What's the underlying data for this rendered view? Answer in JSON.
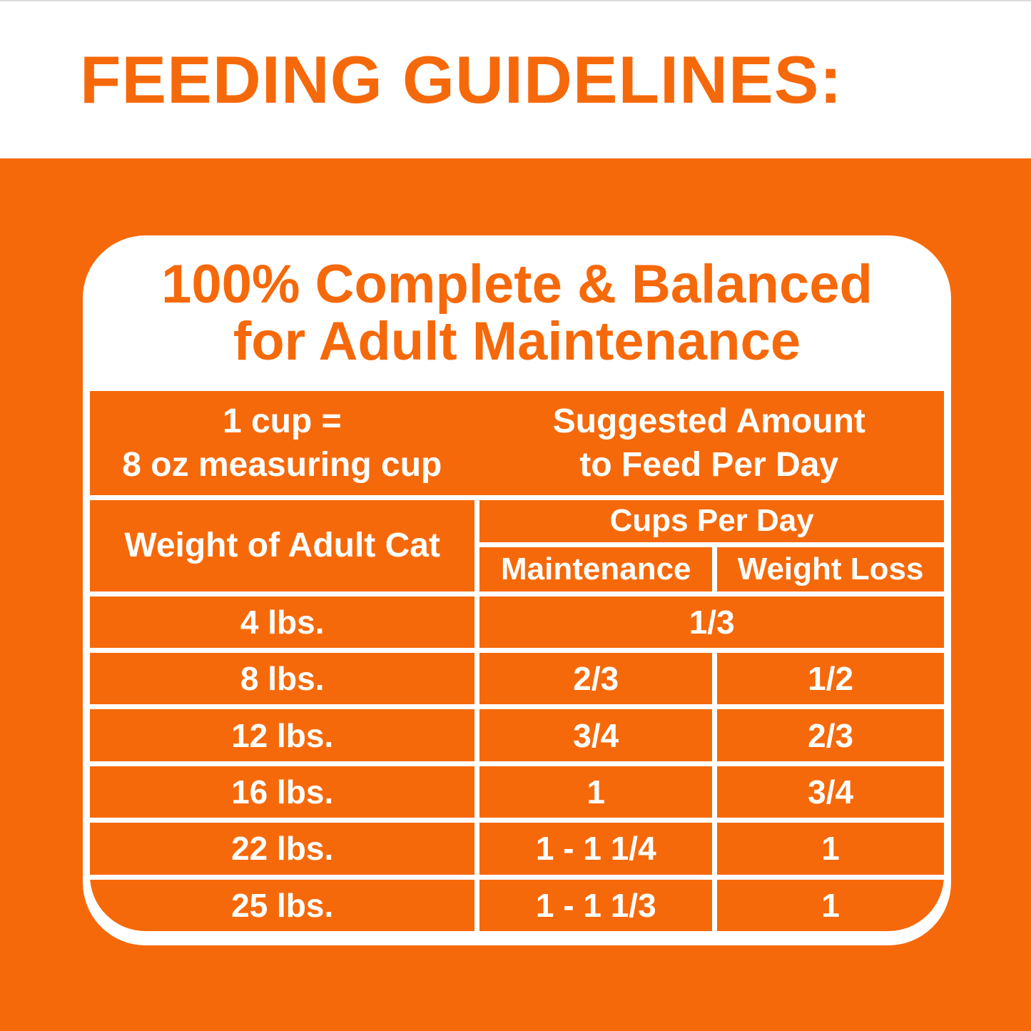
{
  "page_title": "FEEDING GUIDELINES:",
  "colors": {
    "orange": "#F6690A",
    "background_white": "#FFFFFF"
  },
  "card": {
    "heading_line1": "100% Complete & Balanced",
    "heading_line2": "for Adult Maintenance",
    "table": {
      "cup_note": {
        "line1": "1 cup =",
        "line2": "8 oz measuring cup"
      },
      "suggested": {
        "line1": "Suggested Amount",
        "line2": "to Feed Per Day"
      },
      "weight_header": "Weight of Adult Cat",
      "cups_per_day_header": "Cups Per Day",
      "maintenance_header": "Maintenance",
      "weight_loss_header": "Weight Loss",
      "rows": [
        {
          "weight": "4 lbs.",
          "maintenance": "1/3",
          "weight_loss": null
        },
        {
          "weight": "8 lbs.",
          "maintenance": "2/3",
          "weight_loss": "1/2"
        },
        {
          "weight": "12 lbs.",
          "maintenance": "3/4",
          "weight_loss": "2/3"
        },
        {
          "weight": "16 lbs.",
          "maintenance": "1",
          "weight_loss": "3/4"
        },
        {
          "weight": "22 lbs.",
          "maintenance": "1 - 1 1/4",
          "weight_loss": "1"
        },
        {
          "weight": "25 lbs.",
          "maintenance": "1 - 1 1/3",
          "weight_loss": "1"
        }
      ]
    }
  }
}
